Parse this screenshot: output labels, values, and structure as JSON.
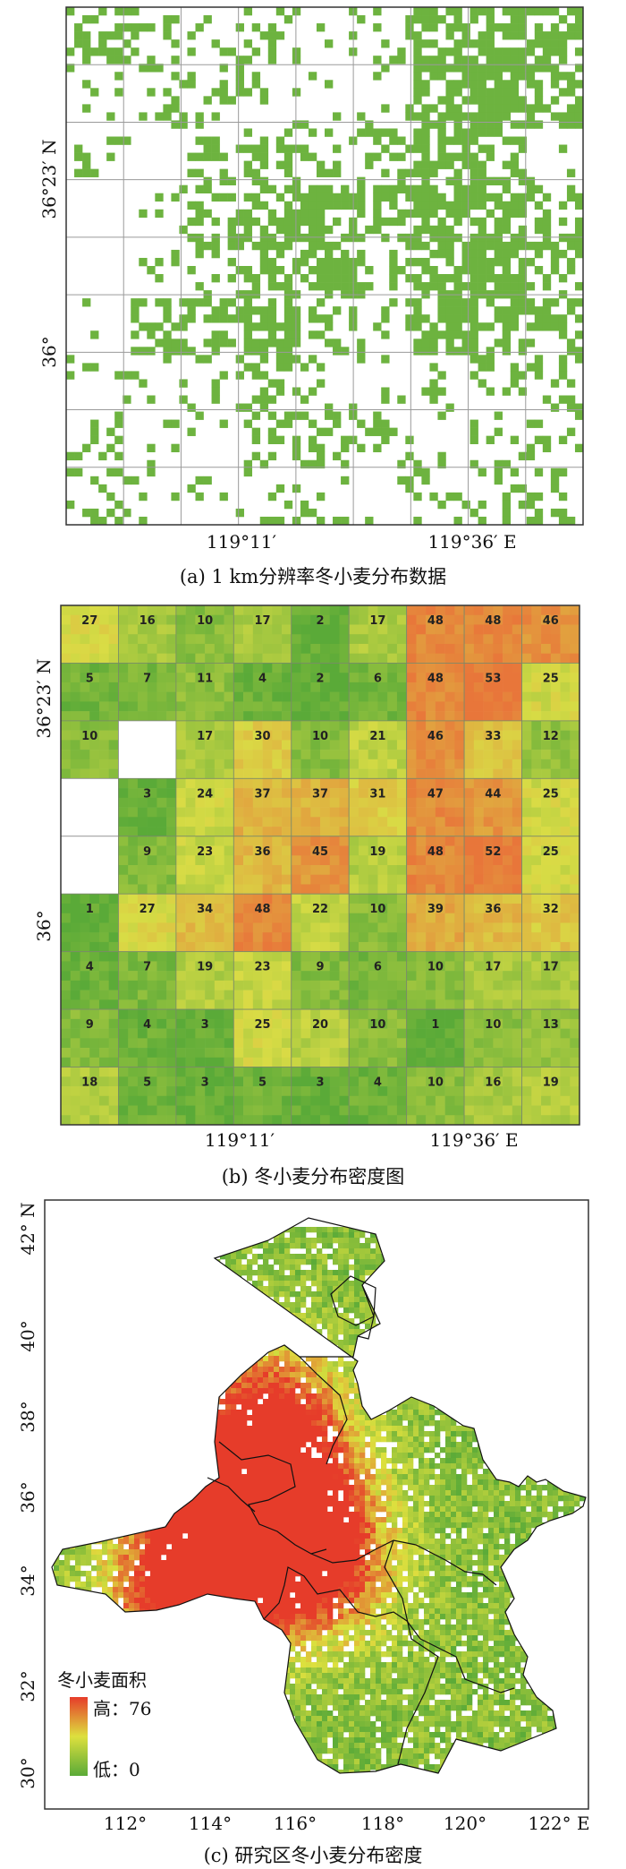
{
  "panel_a": {
    "caption": "(a) 1 km分辨率冬小麦分布数据",
    "lat_labels": [
      "36°23′ N",
      "36°"
    ],
    "lon_labels": [
      "119°11′",
      "119°36′ E"
    ],
    "colors": {
      "wheat": "#6db33f",
      "grid": "#9a9a9a",
      "background": "#ffffff"
    }
  },
  "panel_b": {
    "caption": "(b) 冬小麦分布密度图",
    "lat_labels": [
      "36°23′ N",
      "36°"
    ],
    "lon_labels": [
      "119°11′",
      "119°36′ E"
    ],
    "cells": [
      [
        27,
        16,
        10,
        17,
        2,
        17,
        48,
        48,
        46
      ],
      [
        5,
        7,
        11,
        4,
        2,
        6,
        48,
        53,
        25
      ],
      [
        10,
        null,
        17,
        30,
        10,
        21,
        46,
        33,
        12
      ],
      [
        null,
        3,
        24,
        37,
        37,
        31,
        47,
        44,
        25
      ],
      [
        null,
        9,
        23,
        36,
        45,
        19,
        48,
        52,
        25
      ],
      [
        1,
        27,
        34,
        48,
        22,
        10,
        39,
        36,
        32
      ],
      [
        4,
        7,
        19,
        23,
        9,
        6,
        10,
        17,
        17
      ],
      [
        9,
        4,
        3,
        25,
        20,
        10,
        1,
        10,
        13
      ],
      [
        18,
        5,
        3,
        5,
        3,
        4,
        10,
        16,
        19
      ]
    ],
    "colors": {
      "low": "#5aaa38",
      "mid": "#d9dc45",
      "high": "#e8763a"
    }
  },
  "panel_c": {
    "caption": "(c) 研究区冬小麦分布密度",
    "lat_labels": [
      "42° N",
      "40°",
      "38°",
      "36°",
      "34°",
      "32°",
      "30°"
    ],
    "lon_labels": [
      "112°",
      "114°",
      "116°",
      "118°",
      "120°",
      "122° E"
    ],
    "legend": {
      "title": "冬小麦面积",
      "high_label": "高：76",
      "low_label": "低：0"
    },
    "colors": {
      "low": "#5aaa38",
      "mid": "#dde03e",
      "high": "#e63c2a"
    }
  }
}
